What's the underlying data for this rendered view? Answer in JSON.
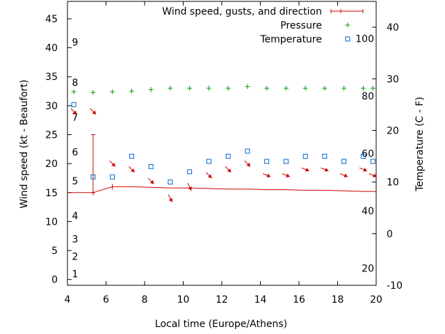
{
  "chart_data": {
    "type": "line",
    "xlabel": "Local time (Europe/Athens)",
    "ylabel_left": "Wind speed (kt - Beaufort)",
    "ylabel_right": "Temperature (C - F)",
    "xlim": [
      4,
      20
    ],
    "ylim_left": [
      -1,
      48
    ],
    "ylim_right": [
      -10,
      45
    ],
    "x_ticks": [
      4,
      6,
      8,
      10,
      12,
      14,
      16,
      18,
      20
    ],
    "y_ticks_left": [
      0,
      5,
      10,
      15,
      20,
      25,
      30,
      35,
      40,
      45
    ],
    "y_ticks_right": [
      -10,
      0,
      10,
      20,
      30,
      40
    ],
    "beaufort_labels": [
      {
        "label": "1",
        "kt": 1
      },
      {
        "label": "2",
        "kt": 4
      },
      {
        "label": "3",
        "kt": 7
      },
      {
        "label": "4",
        "kt": 11
      },
      {
        "label": "5",
        "kt": 17
      },
      {
        "label": "6",
        "kt": 22
      },
      {
        "label": "7",
        "kt": 28
      },
      {
        "label": "8",
        "kt": 34
      },
      {
        "label": "9",
        "kt": 41
      }
    ],
    "fahrenheit_labels": [
      {
        "label": "20",
        "f": 20
      },
      {
        "label": "40",
        "f": 40
      },
      {
        "label": "60",
        "f": 60
      },
      {
        "label": "80",
        "f": 80
      },
      {
        "label": "100",
        "f": 100
      }
    ],
    "legend": {
      "position": "top-right",
      "entries": [
        {
          "label": "Wind speed, gusts, and direction",
          "color": "#cc0000",
          "marker": "line-with-ticks"
        },
        {
          "label": "Pressure",
          "color": "#009900",
          "marker": "plus"
        },
        {
          "label": "Temperature",
          "color": "#0066cc",
          "marker": "square"
        }
      ]
    },
    "series": [
      {
        "name": "Wind speed, gusts, and direction",
        "color": "#cc0000",
        "x": [
          4.0,
          5.33,
          6.33,
          7.33,
          8.33,
          9.33,
          10.33,
          11.33,
          12.33,
          13.33,
          14.33,
          15.33,
          16.33,
          17.33,
          18.33,
          19.33,
          20.0
        ],
        "y": [
          15.0,
          15.0,
          16.0,
          16.0,
          15.9,
          15.8,
          15.8,
          15.7,
          15.6,
          15.6,
          15.5,
          15.5,
          15.4,
          15.4,
          15.3,
          15.2,
          15.2
        ],
        "gust_at": 5.33,
        "gust_range": [
          15,
          25
        ]
      },
      {
        "name": "Pressure",
        "color": "#009900",
        "x": [
          4.33,
          5.33,
          6.33,
          7.33,
          8.33,
          9.33,
          10.33,
          11.33,
          12.33,
          13.33,
          14.33,
          15.33,
          16.33,
          17.33,
          18.33,
          19.33,
          19.83
        ],
        "y": [
          32.4,
          32.3,
          32.4,
          32.5,
          32.8,
          33.0,
          33.0,
          33.0,
          33.0,
          33.3,
          33.0,
          33.0,
          33.0,
          33.0,
          33.0,
          33.0,
          33.0
        ]
      },
      {
        "name": "Temperature",
        "color": "#0066cc",
        "x": [
          4.33,
          5.33,
          6.33,
          7.33,
          8.33,
          9.33,
          10.33,
          11.33,
          12.33,
          13.33,
          14.33,
          15.33,
          16.33,
          17.33,
          18.33,
          19.33,
          19.83
        ],
        "y": [
          25,
          11,
          11,
          15,
          13,
          10,
          12,
          14,
          15,
          16,
          14,
          14,
          15,
          15,
          14,
          15,
          14
        ]
      }
    ],
    "wind_direction_arrows": {
      "color": "#cc0000",
      "arrows": [
        {
          "x": 4.33,
          "kt": 29.0,
          "dir": "SE"
        },
        {
          "x": 5.33,
          "kt": 29.0,
          "dir": "SE"
        },
        {
          "x": 6.33,
          "kt": 20.0,
          "dir": "SE"
        },
        {
          "x": 7.33,
          "kt": 19.0,
          "dir": "SE"
        },
        {
          "x": 8.33,
          "kt": 17.0,
          "dir": "SE"
        },
        {
          "x": 9.33,
          "kt": 14.0,
          "dir": "SSE"
        },
        {
          "x": 10.33,
          "kt": 16.0,
          "dir": "SSE"
        },
        {
          "x": 11.33,
          "kt": 18.0,
          "dir": "SE"
        },
        {
          "x": 12.33,
          "kt": 19.0,
          "dir": "SE"
        },
        {
          "x": 13.33,
          "kt": 20.0,
          "dir": "SE"
        },
        {
          "x": 14.33,
          "kt": 18.0,
          "dir": "E"
        },
        {
          "x": 15.33,
          "kt": 18.0,
          "dir": "E"
        },
        {
          "x": 16.33,
          "kt": 19.0,
          "dir": "E"
        },
        {
          "x": 17.33,
          "kt": 19.0,
          "dir": "E"
        },
        {
          "x": 18.33,
          "kt": 18.0,
          "dir": "E"
        },
        {
          "x": 19.33,
          "kt": 19.0,
          "dir": "E"
        },
        {
          "x": 19.83,
          "kt": 18.0,
          "dir": "E"
        }
      ]
    },
    "grid": false
  }
}
